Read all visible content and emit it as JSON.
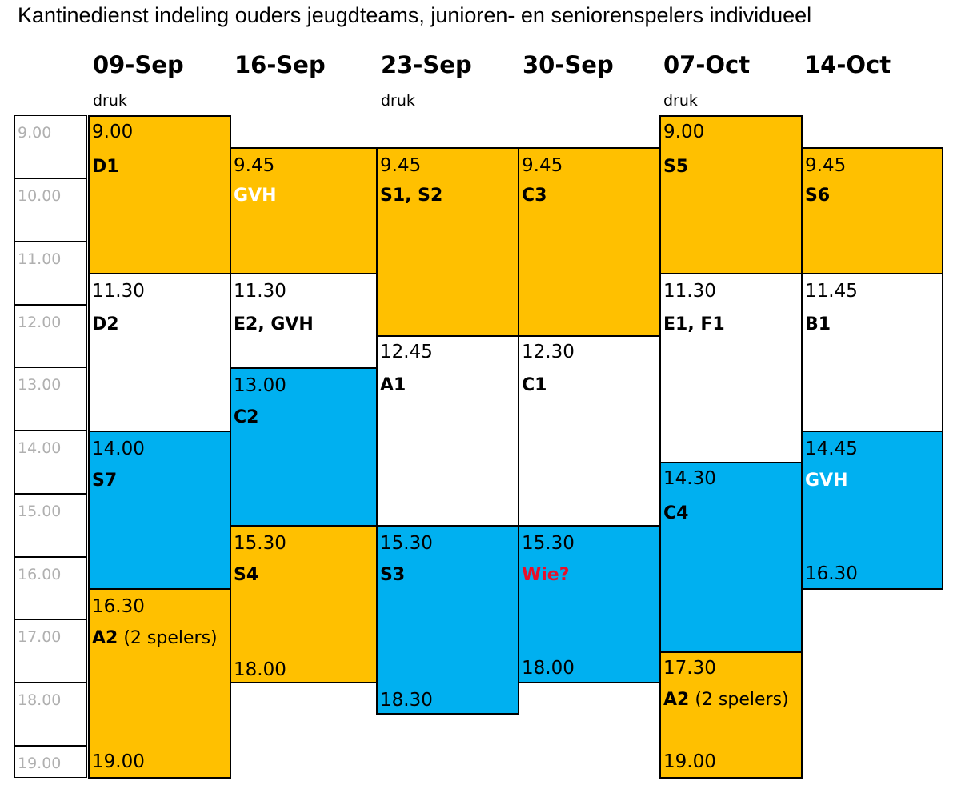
{
  "title": "Kantinedienst indeling ouders jeugdteams, junioren- en seniorenspelers individueel",
  "dates": [
    "09-Sep",
    "16-Sep",
    "23-Sep",
    "30-Sep",
    "07-Oct",
    "14-Oct"
  ],
  "druk": "druk",
  "hours": [
    "9.00",
    "10.00",
    "11.00",
    "12.00",
    "13.00",
    "14.00",
    "15.00",
    "16.00",
    "17.00",
    "18.00",
    "19.00"
  ],
  "blocks": {
    "c1": [
      {
        "time": "9.00",
        "team": "D1",
        "extra": ""
      },
      {
        "time": "11.30",
        "team": "D2",
        "extra": ""
      },
      {
        "time": "14.00",
        "team": "S7",
        "extra": ""
      },
      {
        "time": "16.30",
        "team": "A2",
        "extra": "(2 spelers)",
        "end": "19.00"
      }
    ],
    "c2": [
      {
        "time": "9.45",
        "team": "GVH"
      },
      {
        "time": "11.30",
        "team": "E2, GVH"
      },
      {
        "time": "13.00",
        "team": "C2"
      },
      {
        "time": "15.30",
        "team": "S4",
        "end": "18.00"
      }
    ],
    "c3": [
      {
        "time": "9.45",
        "team": "S1, S2"
      },
      {
        "time": "12.45",
        "team": "A1"
      },
      {
        "time": "15.30",
        "team": "S3",
        "end": "18.30"
      }
    ],
    "c4": [
      {
        "time": "9.45",
        "team": "C3"
      },
      {
        "time": "12.30",
        "team": "C1"
      },
      {
        "time": "15.30",
        "team": "Wie?",
        "end": "18.00"
      }
    ],
    "c5": [
      {
        "time": "9.00",
        "team": "S5"
      },
      {
        "time": "11.30",
        "team": "E1, F1"
      },
      {
        "time": "14.30",
        "team": "C4"
      },
      {
        "time": "17.30",
        "team": "A2",
        "extra": "(2 spelers)",
        "end": "19.00"
      }
    ],
    "c6": [
      {
        "time": "9.45",
        "team": "S6"
      },
      {
        "time": "11.45",
        "team": "B1"
      },
      {
        "time": "14.45",
        "team": "GVH",
        "end": "16.30"
      }
    ]
  },
  "colors": {
    "yellow": "#ffc000",
    "blue": "#00b0f0",
    "white": "#ffffff",
    "red": "#e8102a"
  }
}
